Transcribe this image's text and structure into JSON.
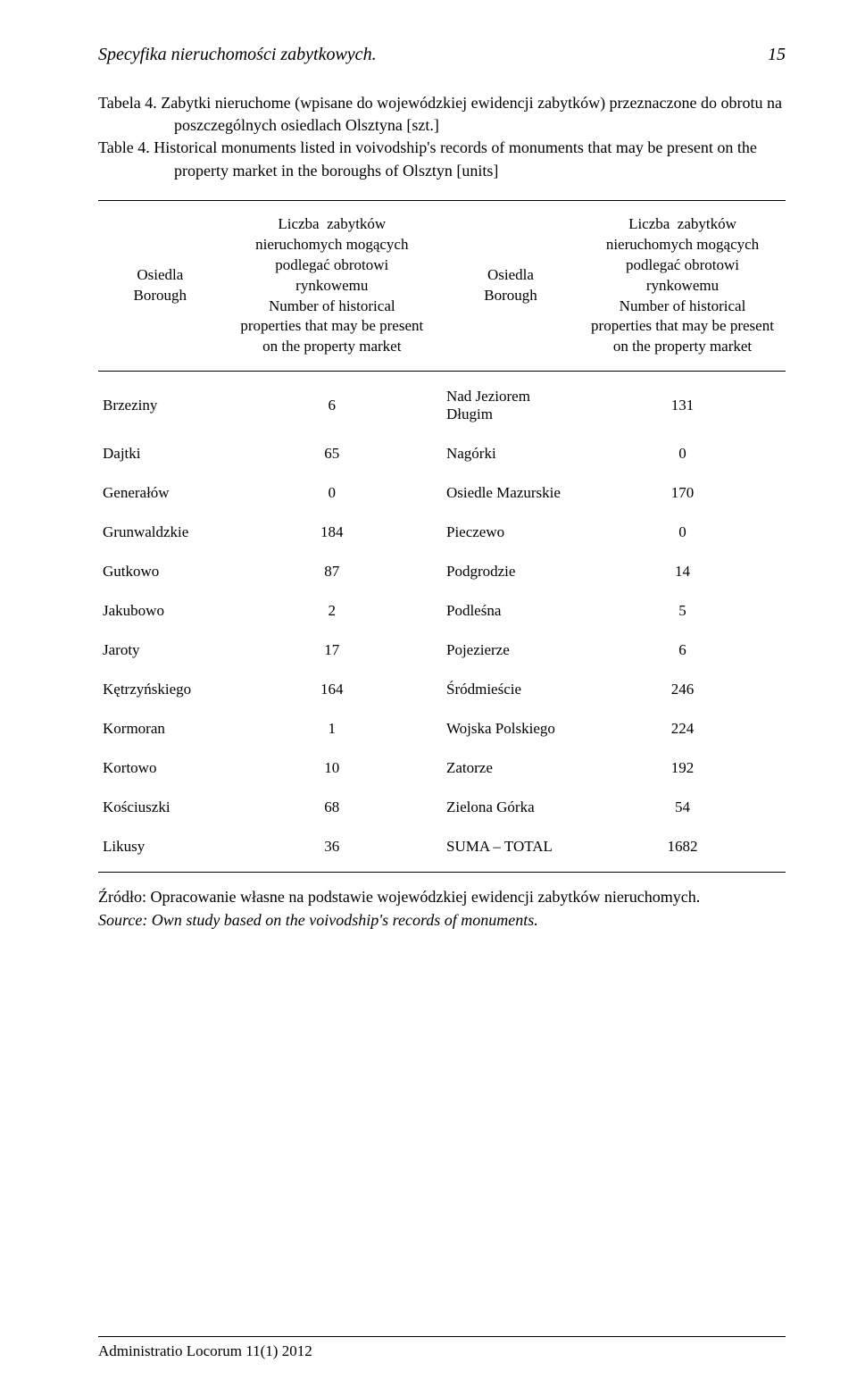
{
  "header": {
    "running_title": "Specyfika nieruchomości zabytkowych.",
    "page_number": "15"
  },
  "caption": {
    "pl_label": "Tabela 4.",
    "pl_text": "Zabytki nieruchome (wpisane do wojewódzkiej ewidencji zabytków) przeznaczone do obrotu na poszczególnych osiedlach Olsztyna [szt.]",
    "en_label": "Table 4.",
    "en_text": "Historical monuments listed in voivodship's records of monuments that may be present on the property market in the boroughs of Olsztyn [units]"
  },
  "table": {
    "col_headers": {
      "osiedla": "Osiedla\nBorough",
      "metric": "Liczba  zabytków\nnieruchomych mogących\npodlegać obrotowi\nrynkowemu\nNumber of historical\nproperties that may be present\non the property market"
    },
    "rows": [
      {
        "left1": "Brzeziny",
        "val1": "6",
        "left2": "Nad Jeziorem Długim",
        "val2": "131"
      },
      {
        "left1": "Dajtki",
        "val1": "65",
        "left2": "Nagórki",
        "val2": "0"
      },
      {
        "left1": "Generałów",
        "val1": "0",
        "left2": "Osiedle Mazurskie",
        "val2": "170"
      },
      {
        "left1": "Grunwaldzkie",
        "val1": "184",
        "left2": "Pieczewo",
        "val2": "0"
      },
      {
        "left1": "Gutkowo",
        "val1": "87",
        "left2": "Podgrodzie",
        "val2": "14"
      },
      {
        "left1": "Jakubowo",
        "val1": "2",
        "left2": "Podleśna",
        "val2": "5"
      },
      {
        "left1": "Jaroty",
        "val1": "17",
        "left2": "Pojezierze",
        "val2": "6"
      },
      {
        "left1": "Kętrzyńskiego",
        "val1": "164",
        "left2": "Śródmieście",
        "val2": "246"
      },
      {
        "left1": "Kormoran",
        "val1": "1",
        "left2": "Wojska Polskiego",
        "val2": "224"
      },
      {
        "left1": "Kortowo",
        "val1": "10",
        "left2": "Zatorze",
        "val2": "192"
      },
      {
        "left1": "Kościuszki",
        "val1": "68",
        "left2": "Zielona Górka",
        "val2": "54"
      },
      {
        "left1": "Likusy",
        "val1": "36",
        "left2": "SUMA – TOTAL",
        "val2": "1682"
      }
    ]
  },
  "source": {
    "pl": "Źródło: Opracowanie własne na podstawie wojewódzkiej ewidencji zabytków nieruchomych.",
    "en": "Source: Own study based on the voivodship's records of monuments."
  },
  "footer": {
    "journal": "Administratio Locorum 11(1) 2012"
  }
}
